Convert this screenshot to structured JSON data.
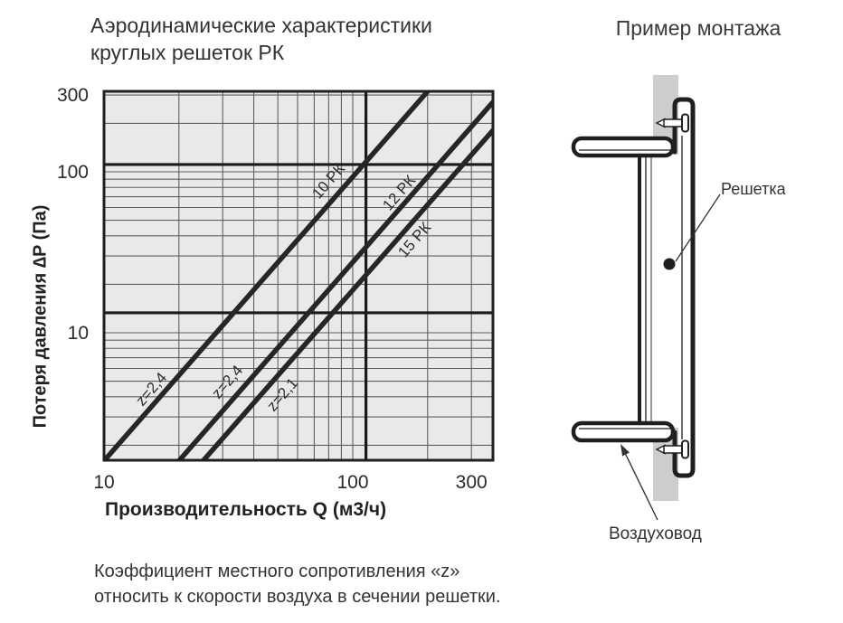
{
  "page": {
    "chart_title": "Аэродинамические характеристики\nкруглых решеток РК",
    "diagram_title": "Пример монтажа",
    "note": "Коэффициент  местного сопротивления «z»\nотносить к скорости воздуха в сечении решетки."
  },
  "chart_data": {
    "type": "line",
    "scale": "log-log",
    "title": "Аэродинамические характеристики круглых решеток РК",
    "xlabel": "Производительность Q (м3/ч)",
    "ylabel": "Потеря давления  ∆P (Па)",
    "xlim": [
      10,
      366
    ],
    "ylim": [
      1.6,
      316
    ],
    "x_ticks": [
      "10",
      "100",
      "300"
    ],
    "y_ticks": [
      "300",
      "100",
      "10"
    ],
    "x_minor": [
      20,
      30,
      40,
      50,
      60,
      70,
      80,
      90,
      100,
      200,
      300
    ],
    "y_minor": [
      2,
      3,
      4,
      5,
      6,
      7,
      8,
      9,
      10,
      20,
      30,
      40,
      50,
      60,
      70,
      80,
      90,
      100,
      200,
      300
    ],
    "grid": true,
    "series": [
      {
        "name": "10 РК",
        "z_label": "z=2,4",
        "points": [
          [
            10,
            1.6
          ],
          [
            200,
            316
          ]
        ]
      },
      {
        "name": "12 РК",
        "z_label": "z=2,4",
        "points": [
          [
            20,
            1.6
          ],
          [
            366,
            271
          ]
        ]
      },
      {
        "name": "15 РК",
        "z_label": "z=2,1",
        "points": [
          [
            25,
            1.6
          ],
          [
            366,
            181
          ]
        ]
      }
    ],
    "reference_lines": {
      "vertical_q": 113,
      "horizontal_p": [
        111,
        13.3
      ]
    }
  },
  "diagram": {
    "labels": {
      "grille": "Решетка",
      "duct": "Воздуховод"
    }
  },
  "colors": {
    "plot_bg": "#e9e9e9",
    "grid": "#5f5f5f",
    "line": "#262626",
    "wall_gray": "#cdcdcd",
    "text": "#333333"
  }
}
